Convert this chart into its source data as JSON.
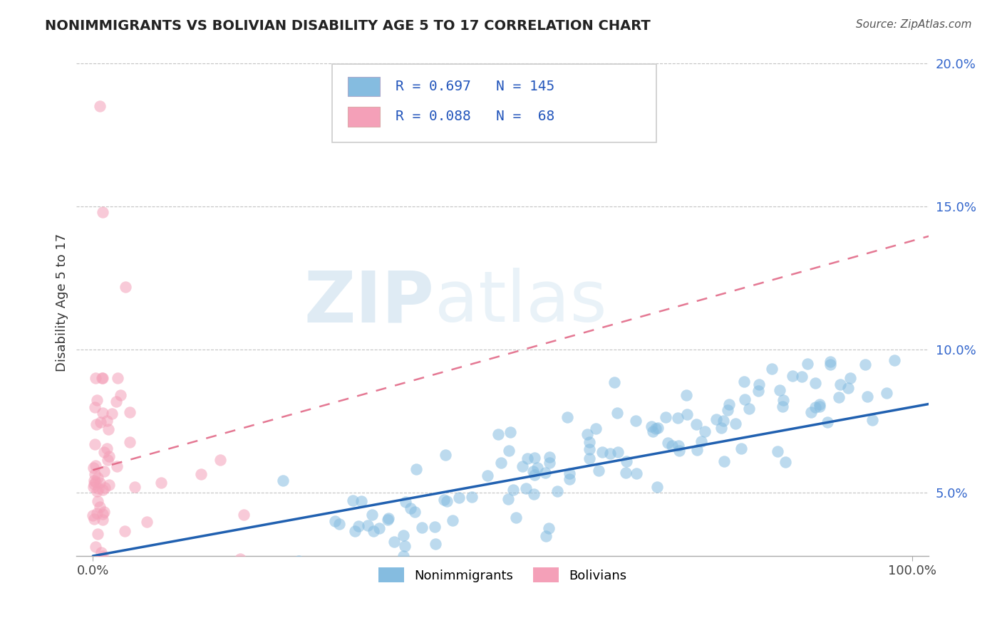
{
  "title": "NONIMMIGRANTS VS BOLIVIAN DISABILITY AGE 5 TO 17 CORRELATION CHART",
  "source": "Source: ZipAtlas.com",
  "ylabel": "Disability Age 5 to 17",
  "legend_label1": "Nonimmigrants",
  "legend_label2": "Bolivians",
  "r1": 0.697,
  "n1": 145,
  "r2": 0.088,
  "n2": 68,
  "color_blue": "#85bce0",
  "color_pink": "#f4a0b8",
  "line_blue": "#2060b0",
  "line_pink": "#e06080",
  "watermark_zip": "ZIP",
  "watermark_atlas": "atlas",
  "xlim": [
    -0.02,
    1.02
  ],
  "ylim_min": 0.028,
  "ylim_max": 0.205,
  "yticks": [
    0.05,
    0.1,
    0.15,
    0.2
  ],
  "ytick_labels": [
    "5.0%",
    "10.0%",
    "15.0%",
    "20.0%"
  ],
  "xticks": [
    0.0,
    1.0
  ],
  "xtick_labels": [
    "0.0%",
    "100.0%"
  ],
  "background": "#ffffff",
  "title_fontsize": 14,
  "blue_intercept": 0.028,
  "blue_slope": 0.052,
  "pink_intercept": 0.058,
  "pink_slope": 0.08
}
